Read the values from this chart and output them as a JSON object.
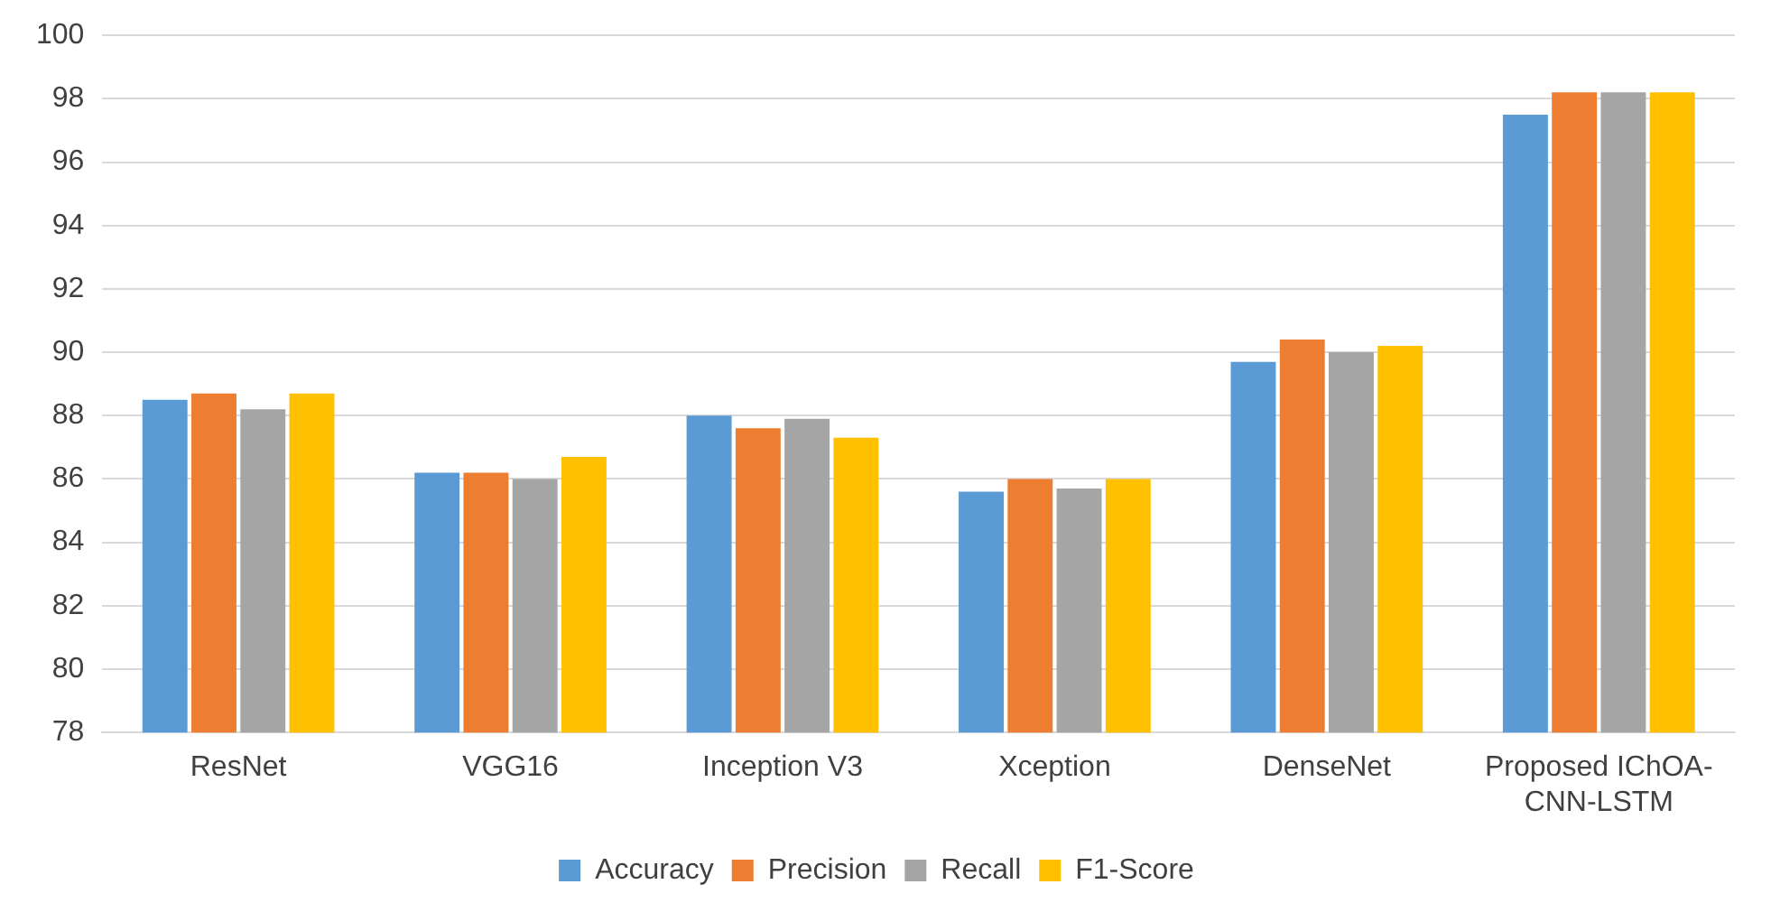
{
  "chart_data": {
    "type": "bar",
    "categories": [
      "ResNet",
      "VGG16",
      "Inception V3",
      "Xception",
      "DenseNet",
      "Proposed IChOA-CNN-LSTM"
    ],
    "series": [
      {
        "name": "Accuracy",
        "color": "#5b9bd5",
        "values": [
          88.5,
          86.2,
          88.0,
          85.6,
          89.7,
          97.5
        ]
      },
      {
        "name": "Precision",
        "color": "#ed7d31",
        "values": [
          88.7,
          86.2,
          87.6,
          86.0,
          90.4,
          98.2
        ]
      },
      {
        "name": "Recall",
        "color": "#a5a5a5",
        "values": [
          88.2,
          86.0,
          87.9,
          85.7,
          90.0,
          98.2
        ]
      },
      {
        "name": "F1-Score",
        "color": "#ffc000",
        "values": [
          88.7,
          86.7,
          87.3,
          86.0,
          90.2,
          98.2
        ]
      }
    ],
    "ylim": [
      78,
      100
    ],
    "yticks": [
      78,
      80,
      82,
      84,
      86,
      88,
      90,
      92,
      94,
      96,
      98,
      100
    ],
    "grid": "y",
    "legend": "bottom"
  }
}
